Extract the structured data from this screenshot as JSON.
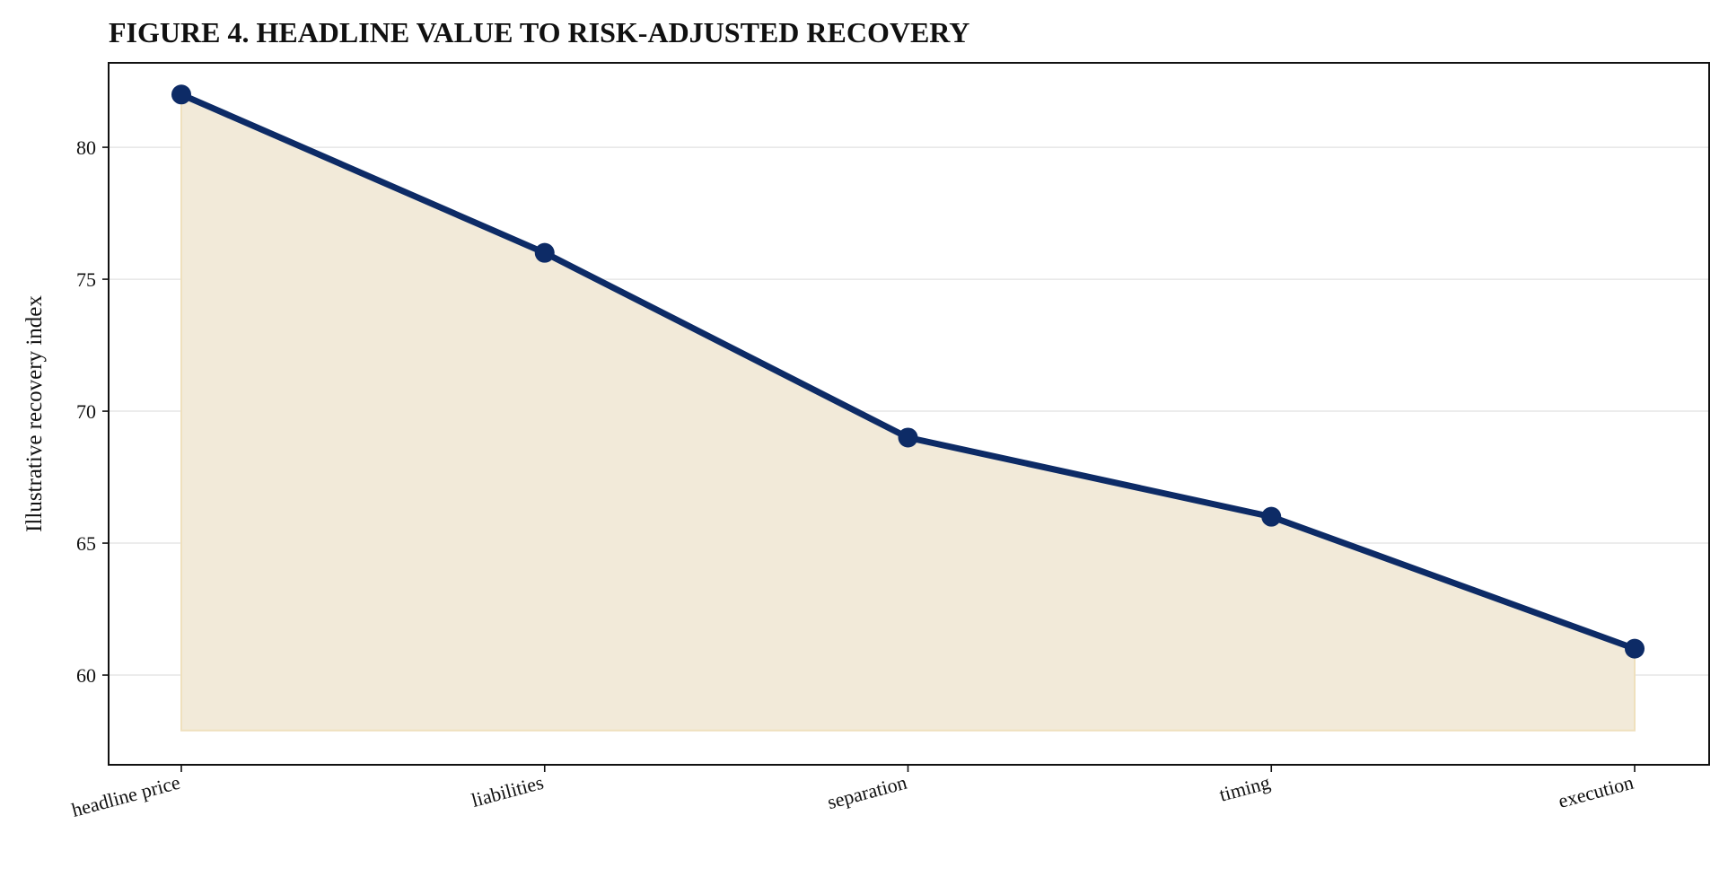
{
  "chart_data": {
    "type": "line",
    "title": "FIGURE 4. HEADLINE VALUE TO RISK-ADJUSTED RECOVERY",
    "xlabel": "",
    "ylabel": "Illustrative recovery index",
    "categories": [
      "headline price",
      "liabilities",
      "separation",
      "timing",
      "execution"
    ],
    "series": [
      {
        "values": [
          82,
          76,
          69,
          66,
          61
        ]
      }
    ],
    "ylim": [
      56.6,
      83.2
    ],
    "yticks": [
      60,
      65,
      70,
      75,
      80
    ],
    "fill_baseline": 57.9,
    "grid": "horizontal",
    "legend": "none",
    "colors": {
      "line": "#0d2b66",
      "marker": "#0d2b66",
      "fill": "#f2ead9",
      "fill_edge": "#efe0bd",
      "grid": "#e6e6e6"
    }
  }
}
